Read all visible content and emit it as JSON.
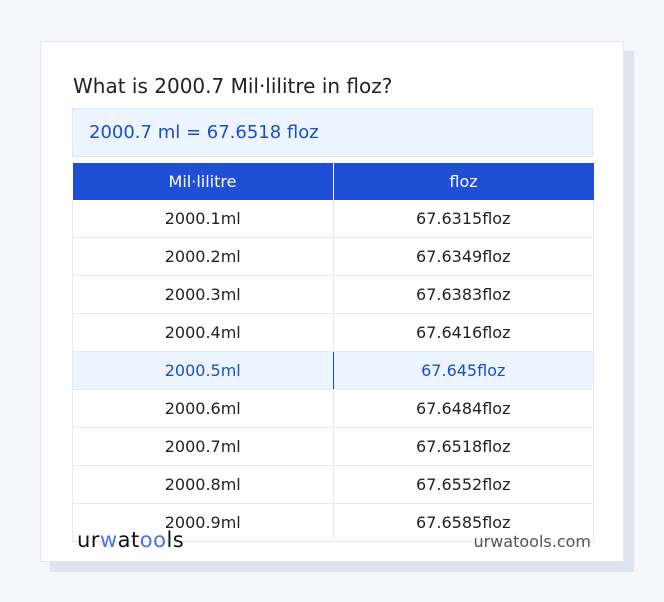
{
  "title": "What is 2000.7 Mil·lilitre in floz?",
  "result": "2000.7 ml = 67.6518 floz",
  "table": {
    "headers": [
      "Mil·lilitre",
      "floz"
    ],
    "rows": [
      [
        "2000.1ml",
        "67.6315floz"
      ],
      [
        "2000.2ml",
        "67.6349floz"
      ],
      [
        "2000.3ml",
        "67.6383floz"
      ],
      [
        "2000.4ml",
        "67.6416floz"
      ],
      [
        "2000.5ml",
        "67.645floz"
      ],
      [
        "2000.6ml",
        "67.6484floz"
      ],
      [
        "2000.7ml",
        "67.6518floz"
      ],
      [
        "2000.8ml",
        "67.6552floz"
      ],
      [
        "2000.9ml",
        "67.6585floz"
      ]
    ],
    "highlighted_row": 4
  },
  "footer": {
    "logo": "urwatools",
    "site": "urwatools.com"
  },
  "colors": {
    "accent": "#1f4fd6",
    "highlight_bg": "#ebf4ff",
    "highlight_text": "#1d4fc4"
  }
}
